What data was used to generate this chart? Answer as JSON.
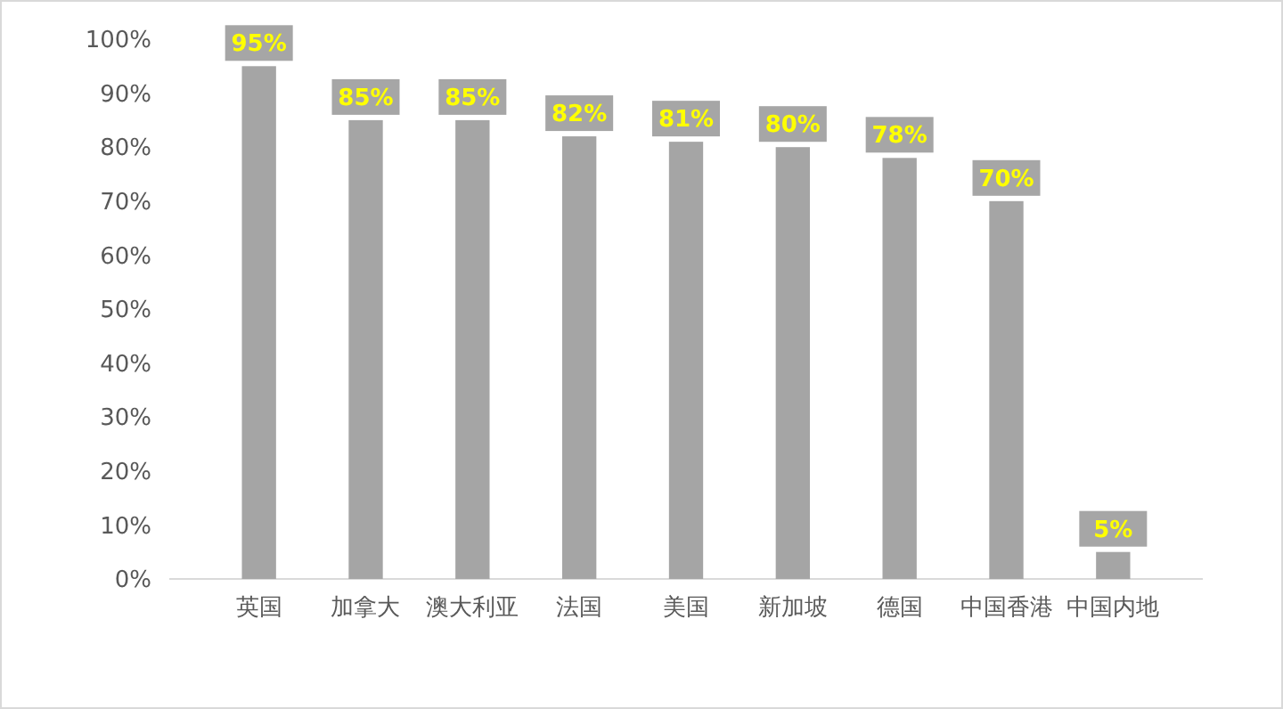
{
  "chart_data": {
    "type": "bar",
    "categories": [
      "英国",
      "加拿大",
      "澳大利亚",
      "法国",
      "美国",
      "新加坡",
      "德国",
      "中国香港",
      "中国内地"
    ],
    "values": [
      95,
      85,
      85,
      82,
      81,
      80,
      78,
      70,
      5
    ],
    "color": "#a5a5a5",
    "ylim": [
      0,
      100
    ],
    "yticks": [
      {
        "value": 0,
        "label": "0%"
      },
      {
        "value": 10,
        "label": "10%"
      },
      {
        "value": 20,
        "label": "20%"
      },
      {
        "value": 30,
        "label": "30%"
      },
      {
        "value": 40,
        "label": "40%"
      },
      {
        "value": 50,
        "label": "50%"
      },
      {
        "value": 60,
        "label": "60%"
      },
      {
        "value": 70,
        "label": "70%"
      },
      {
        "value": 80,
        "label": "80%"
      },
      {
        "value": 90,
        "label": "90%"
      },
      {
        "value": 100,
        "label": "100%"
      }
    ],
    "value_labels": [
      "95%",
      "85%",
      "85%",
      "82%",
      "81%",
      "80%",
      "78%",
      "70%",
      "5%"
    ],
    "grid": false
  }
}
